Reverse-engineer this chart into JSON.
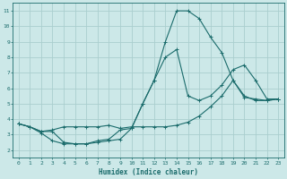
{
  "xlabel": "Humidex (Indice chaleur)",
  "xlim": [
    -0.5,
    23.5
  ],
  "ylim": [
    1.5,
    11.5
  ],
  "xticks": [
    0,
    1,
    2,
    3,
    4,
    5,
    6,
    7,
    8,
    9,
    10,
    11,
    12,
    13,
    14,
    15,
    16,
    17,
    18,
    19,
    20,
    21,
    22,
    23
  ],
  "yticks": [
    2,
    3,
    4,
    5,
    6,
    7,
    8,
    9,
    10,
    11
  ],
  "background_color": "#cce8e8",
  "grid_color": "#aacece",
  "line_color": "#1a6b6b",
  "line1_x": [
    0,
    1,
    2,
    3,
    4,
    5,
    6,
    7,
    8,
    9,
    10,
    11,
    12,
    13,
    14,
    15,
    16,
    17,
    18,
    19,
    20,
    21,
    22,
    23
  ],
  "line1_y": [
    3.7,
    3.5,
    3.2,
    3.2,
    2.5,
    2.4,
    2.4,
    2.6,
    2.7,
    3.3,
    3.4,
    5.0,
    6.5,
    9.0,
    11.0,
    11.0,
    10.5,
    9.3,
    8.3,
    6.5,
    5.4,
    5.3,
    5.2,
    5.3
  ],
  "line2_x": [
    0,
    1,
    2,
    3,
    4,
    5,
    6,
    7,
    8,
    9,
    10,
    11,
    12,
    13,
    14,
    15,
    16,
    17,
    18,
    19,
    20,
    21,
    22,
    23
  ],
  "line2_y": [
    3.7,
    3.5,
    3.2,
    3.3,
    3.5,
    3.5,
    3.5,
    3.5,
    3.6,
    3.4,
    3.5,
    3.5,
    3.5,
    3.5,
    3.6,
    3.8,
    4.2,
    4.8,
    5.5,
    6.5,
    5.5,
    5.2,
    5.2,
    5.3
  ],
  "line3_x": [
    0,
    1,
    2,
    3,
    4,
    5,
    6,
    7,
    8,
    9,
    10,
    11,
    12,
    13,
    14,
    15,
    16,
    17,
    18,
    19,
    20,
    21,
    22,
    23
  ],
  "line3_y": [
    3.7,
    3.5,
    3.1,
    2.6,
    2.4,
    2.4,
    2.4,
    2.5,
    2.6,
    2.7,
    3.4,
    5.0,
    6.5,
    8.0,
    8.5,
    5.5,
    5.2,
    5.5,
    6.2,
    7.2,
    7.5,
    6.5,
    5.3,
    5.3
  ]
}
